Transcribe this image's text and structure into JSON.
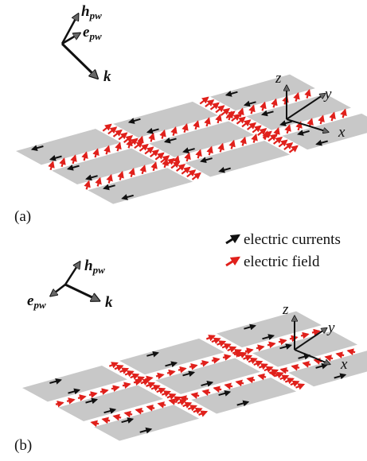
{
  "panels": [
    {
      "label": "(a)",
      "axes": {
        "x": "x",
        "y": "y",
        "z": "z"
      },
      "vectors": {
        "h": "h",
        "h_sub": "pw",
        "e": "e",
        "e_sub": "pw",
        "k": "k"
      }
    },
    {
      "label": "(b)",
      "axes": {
        "x": "x",
        "y": "y",
        "z": "z"
      },
      "vectors": {
        "h": "h",
        "h_sub": "pw",
        "e": "e",
        "e_sub": "pw",
        "k": "k"
      }
    }
  ],
  "legend": {
    "currents": "electric currents",
    "field": "electric field"
  }
}
